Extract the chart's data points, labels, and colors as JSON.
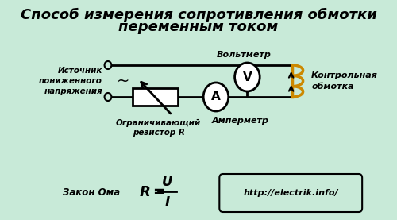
{
  "bg_color": "#c8ead8",
  "title_line1": "Способ измерения сопротивления обмотки",
  "title_line2": "переменным током",
  "title_color": "#000000",
  "title_fontsize": 13,
  "label_resistor": "Ограничивающий\nрезистор R",
  "label_ammeter": "Амперметр",
  "label_source": "Источник\nпониженного\nнапряжения",
  "label_voltmeter": "Вольтметр",
  "label_coil": "Контрольная\nобмотка",
  "label_ohm": "Закон Ома",
  "url": "http://electrik.info/",
  "circuit_color": "#000000",
  "coil_color": "#cc8800",
  "meter_color": "#ffffff",
  "meter_outline": "#000000",
  "resistor_color": "#ffffff",
  "resistor_outline": "#000000"
}
